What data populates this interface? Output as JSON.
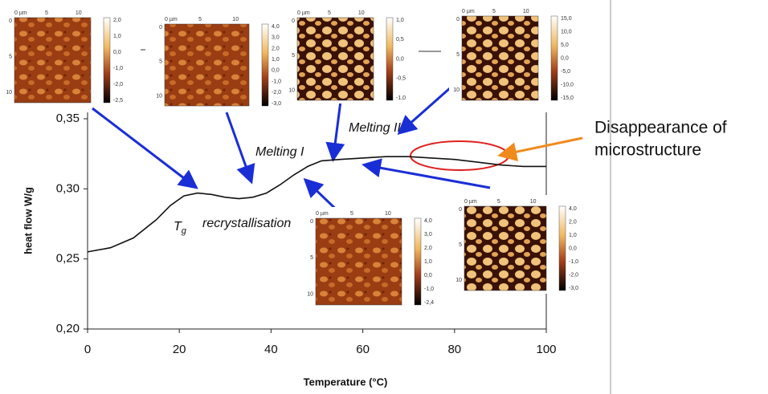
{
  "chart_data": {
    "type": "line",
    "x": [
      0,
      5,
      10,
      15,
      18,
      21,
      24,
      27,
      30,
      33,
      36,
      39,
      42,
      45,
      48,
      51,
      55,
      60,
      65,
      70,
      75,
      80,
      85,
      90,
      95,
      100
    ],
    "values": [
      0.255,
      0.258,
      0.265,
      0.278,
      0.288,
      0.295,
      0.297,
      0.296,
      0.294,
      0.293,
      0.294,
      0.297,
      0.303,
      0.31,
      0.316,
      0.32,
      0.321,
      0.322,
      0.323,
      0.323,
      0.322,
      0.321,
      0.319,
      0.317,
      0.316,
      0.316
    ],
    "color": "#111111",
    "xlabel": "Temperature (°C)",
    "ylabel": "heat flow W/g",
    "xlim": [
      0,
      100
    ],
    "xticks": [
      0,
      20,
      40,
      60,
      80,
      100
    ],
    "ylim": [
      0.2,
      0.35
    ],
    "yticks": [
      {
        "value": 0.2,
        "label": "0,20"
      },
      {
        "value": 0.25,
        "label": "0,25"
      },
      {
        "value": 0.3,
        "label": "0,30"
      },
      {
        "value": 0.35,
        "label": "0,35"
      }
    ],
    "annotations": {
      "tg": {
        "main": "T",
        "sub": "g"
      },
      "recrystallisation": "recrystallisation",
      "melting_1": "Melting I",
      "melting_2": "Melting II",
      "disappearance": [
        "Disappearance of",
        "microstructure"
      ]
    }
  },
  "insets": [
    {
      "x_labels": [
        "0 µm",
        "5",
        "10"
      ],
      "y_labels": [
        "0",
        "5",
        "10"
      ],
      "colorbar_labels": [
        "2,0",
        "1,0",
        "0,0",
        "-1,0",
        "-2,0",
        "-2,5"
      ]
    },
    {
      "x_labels": [
        "0 µm",
        "5",
        "10"
      ],
      "y_labels": [
        "0",
        "5",
        "10"
      ],
      "colorbar_labels": [
        "4,0",
        "3,0",
        "2,0",
        "1,0",
        "0,0",
        "-1,0",
        "-2,0",
        "-3,0"
      ]
    },
    {
      "x_labels": [
        "0 µm",
        "5",
        "10"
      ],
      "y_labels": [
        "0",
        "5",
        "10"
      ],
      "colorbar_labels": [
        "1,0",
        "0,5",
        "0,0",
        "-0,5",
        "-1,0"
      ]
    },
    {
      "x_labels": [
        "0 µm",
        "5",
        "10"
      ],
      "y_labels": [
        "0",
        "5",
        "10"
      ],
      "colorbar_labels": [
        "15,0",
        "10,0",
        "5,0",
        "0,0",
        "-5,0",
        "-10,0",
        "-15,0"
      ]
    },
    {
      "x_labels": [
        "0 µm",
        "5",
        "10"
      ],
      "y_labels": [
        "0",
        "5",
        "10"
      ],
      "colorbar_labels": [
        "4,0",
        "3,0",
        "2,0",
        "1,0",
        "0,0",
        "-1,0",
        "-2,4"
      ]
    },
    {
      "x_labels": [
        "0 µm",
        "5",
        "10"
      ],
      "y_labels": [
        "0",
        "5",
        "10"
      ],
      "colorbar_labels": [
        "4,0",
        "2,0",
        "1,0",
        "0,0",
        "-1,0",
        "-2,0",
        "-3,0"
      ]
    }
  ]
}
